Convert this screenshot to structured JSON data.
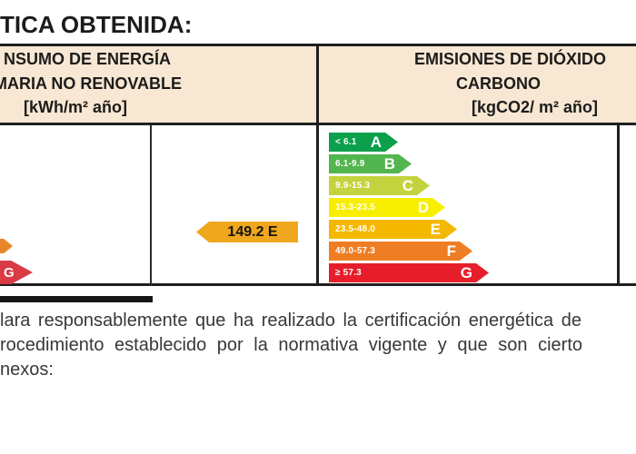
{
  "colors": {
    "header_bg": "#f8e7d2",
    "border": "#1f1f1f",
    "indicator": "#efa71d",
    "partial_f_tip": "#e8862c",
    "partial_g": "#da3a44"
  },
  "title": "TICA OBTENIDA:",
  "header": {
    "left": {
      "line1": "NSUMO DE ENERGÍA",
      "line2": "MARIA NO RENOVABLE",
      "line3": "[kWh/m² año]"
    },
    "right": {
      "line1": "EMISIONES DE DIÓXIDO",
      "line2": "CARBONO",
      "line3": "[kgCO2/ m² año]"
    }
  },
  "consumption": {
    "indicator_value": "149.2 E",
    "partial_g_label": "G"
  },
  "emissions_scale": {
    "rows": [
      {
        "letter": "A",
        "range": "< 6.1",
        "color": "#0ca04c",
        "body_width": 62
      },
      {
        "letter": "B",
        "range": "6.1-9.9",
        "color": "#53b54f",
        "body_width": 77
      },
      {
        "letter": "C",
        "range": "9.9-15.3",
        "color": "#c3d33e",
        "body_width": 97
      },
      {
        "letter": "D",
        "range": "15.3-23.5",
        "color": "#f7ee00",
        "body_width": 114
      },
      {
        "letter": "E",
        "range": "23.5-48.0",
        "color": "#f5b800",
        "body_width": 127
      },
      {
        "letter": "F",
        "range": "49.0-57.3",
        "color": "#ee7d23",
        "body_width": 144
      },
      {
        "letter": "G",
        "range": "≥ 57.3",
        "color": "#e61e2b",
        "body_width": 162
      }
    ]
  },
  "footer": {
    "line1": "lara responsablemente que ha realizado la certificación energética de",
    "line2": "rocedimiento establecido por la normativa vigente y que son cierto",
    "line3": "nexos:"
  }
}
